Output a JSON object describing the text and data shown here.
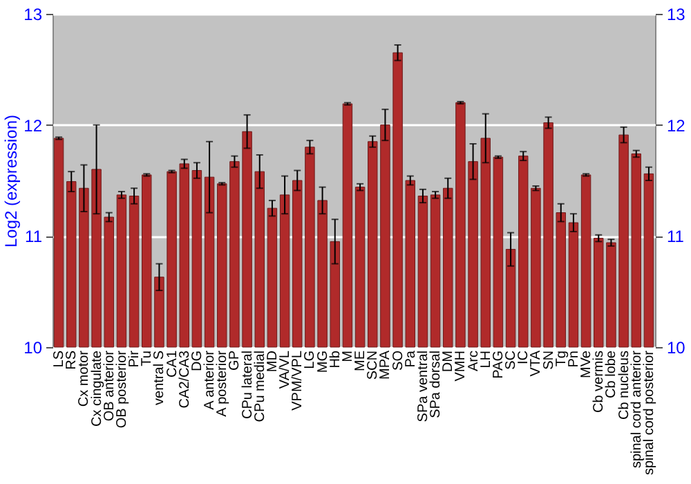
{
  "chart_data": {
    "type": "bar",
    "ylabel": "Log2 (expression)",
    "categories": [
      "LS",
      "RS",
      "Cx motor",
      "Cx cingulate",
      "OB anterior",
      "OB posterior",
      "Pir",
      "Tu",
      "ventral S",
      "CA1",
      "CA2/CA3",
      "DG",
      "A anterior",
      "A posterior",
      "GP",
      "CPu lateral",
      "CPu medial",
      "MD",
      "VA/VL",
      "VPM/VPL",
      "LG",
      "MG",
      "Hb",
      "M",
      "ME",
      "SCN",
      "MPA",
      "SO",
      "Pa",
      "SPa ventral",
      "SPa dorsal",
      "DM",
      "VMH",
      "Arc",
      "LH",
      "PAG",
      "SC",
      "IC",
      "VTA",
      "SN",
      "Tg",
      "Pn",
      "MVe",
      "Cb vermis",
      "Cb lobe",
      "Cb nucleus",
      "spinal cord anterior",
      "spinal cord posterior"
    ],
    "series": [
      {
        "color": "#b02a2a",
        "values": [
          11.88,
          11.49,
          11.43,
          11.6,
          11.17,
          11.37,
          11.36,
          11.55,
          10.63,
          11.58,
          11.65,
          11.59,
          11.53,
          11.47,
          11.67,
          11.94,
          11.58,
          11.25,
          11.37,
          11.5,
          11.8,
          11.32,
          10.95,
          12.19,
          11.44,
          11.85,
          12.0,
          12.65,
          11.5,
          11.36,
          11.37,
          11.43,
          12.2,
          11.67,
          11.88,
          11.71,
          10.88,
          11.72,
          11.43,
          12.02,
          11.21,
          11.12,
          11.55,
          10.98,
          10.94,
          11.91,
          11.74,
          11.56
        ],
        "errors": [
          0.01,
          0.09,
          0.21,
          0.4,
          0.04,
          0.03,
          0.07,
          0.01,
          0.12,
          0.01,
          0.04,
          0.07,
          0.32,
          0.01,
          0.05,
          0.15,
          0.15,
          0.07,
          0.17,
          0.09,
          0.06,
          0.12,
          0.2,
          0.01,
          0.03,
          0.05,
          0.14,
          0.07,
          0.04,
          0.06,
          0.03,
          0.09,
          0.01,
          0.16,
          0.22,
          0.01,
          0.15,
          0.04,
          0.02,
          0.05,
          0.08,
          0.08,
          0.01,
          0.03,
          0.03,
          0.07,
          0.03,
          0.06
        ]
      }
    ],
    "ylim": [
      10,
      13
    ],
    "yticks": [
      10,
      11,
      12,
      13
    ],
    "y2lim": [
      10,
      13
    ],
    "y2ticks": [
      10,
      11,
      12,
      13
    ],
    "grid": "y"
  }
}
